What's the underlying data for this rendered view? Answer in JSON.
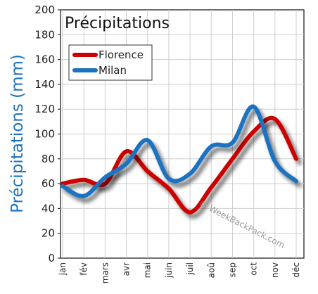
{
  "chart_data": {
    "type": "line",
    "title": "Précipitations",
    "ylabel": "Précipitations (mm)",
    "xlabel": "",
    "categories": [
      "jan",
      "fév",
      "mars",
      "avr",
      "mai",
      "juin",
      "juil",
      "aoû",
      "sep",
      "oct",
      "nov",
      "déc"
    ],
    "series": [
      {
        "name": "Florence",
        "color": "#cc0000",
        "values": [
          60,
          63,
          60,
          86,
          70,
          56,
          37,
          57,
          80,
          102,
          112,
          80
        ]
      },
      {
        "name": "Milan",
        "color": "#1a73c0",
        "values": [
          58,
          50,
          65,
          76,
          95,
          64,
          68,
          90,
          93,
          122,
          78,
          62
        ]
      }
    ],
    "ylim": [
      0,
      200
    ],
    "yticks": [
      0,
      20,
      40,
      60,
      80,
      100,
      120,
      140,
      160,
      180,
      200
    ],
    "grid": true,
    "legend": "top-left"
  },
  "watermark": "© WeekBackPack.com"
}
